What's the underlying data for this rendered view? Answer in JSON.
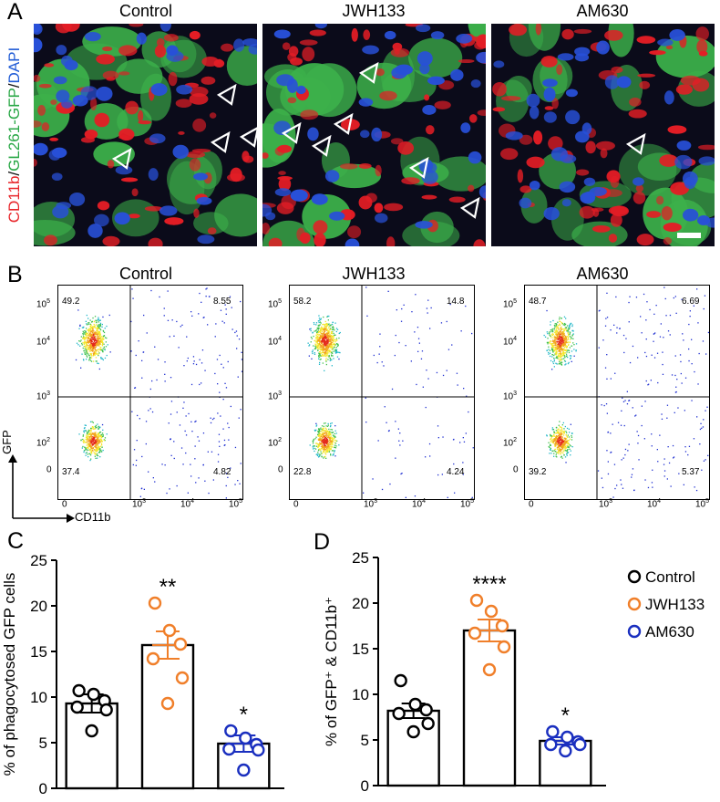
{
  "panelA": {
    "letter": "A",
    "ylabel_parts": [
      {
        "text": "CD11b",
        "color": "#e8262b"
      },
      {
        "text": "/",
        "color": "#111111"
      },
      {
        "text": "GL261-GFP",
        "color": "#28a745"
      },
      {
        "text": "/",
        "color": "#111111"
      },
      {
        "text": "DAPI",
        "color": "#1f5bd6"
      }
    ],
    "titles": [
      "Control",
      "JWH133",
      "AM630"
    ]
  },
  "panelB": {
    "letter": "B",
    "titles": [
      "Control",
      "JWH133",
      "AM630"
    ],
    "xlabel": "CD11b",
    "ylabel": "GFP",
    "quadrants": [
      {
        "ul": "49.2",
        "ur": "8.55",
        "ll": "37.4",
        "lr": "4.82"
      },
      {
        "ul": "58.2",
        "ur": "14.8",
        "ll": "22.8",
        "lr": "4.24"
      },
      {
        "ul": "48.7",
        "ur": "6.69",
        "ll": "39.2",
        "lr": "5.37"
      }
    ],
    "y_ticks": [
      "10",
      "10",
      "10",
      "10",
      "0"
    ],
    "y_tick_exps": [
      "5",
      "4",
      "3",
      "2",
      ""
    ],
    "x_ticks": [
      "0",
      "10",
      "10",
      "10"
    ],
    "x_tick_exps": [
      "",
      "3",
      "4",
      "5"
    ]
  },
  "chart_data": [
    {
      "type": "bar",
      "panel": "C",
      "ylabel": "% of phagocytosed GFP cells",
      "ylim": [
        0,
        25
      ],
      "yticks": [
        0,
        5,
        10,
        15,
        20,
        25
      ],
      "categories": [
        "Control",
        "JWH133",
        "AM630"
      ],
      "values": [
        9.3,
        15.7,
        4.9
      ],
      "sem": [
        1.0,
        1.5,
        0.9
      ],
      "significance": [
        "",
        "**",
        "*"
      ],
      "points": [
        [
          10.7,
          10.3,
          9.6,
          8.9,
          8.6,
          6.3
        ],
        [
          20.3,
          17.3,
          15.8,
          14.2,
          12.1,
          9.3
        ],
        [
          6.3,
          5.5,
          4.8,
          4.3,
          4.2,
          2.0
        ]
      ]
    },
    {
      "type": "bar",
      "panel": "D",
      "ylabel": "% of GFP⁺ & CD11b⁺",
      "ylim": [
        0,
        25
      ],
      "yticks": [
        0,
        5,
        10,
        15,
        20,
        25
      ],
      "categories": [
        "Control",
        "JWH133",
        "AM630"
      ],
      "values": [
        8.2,
        17.0,
        4.9
      ],
      "sem": [
        0.8,
        1.2,
        0.4
      ],
      "significance": [
        "",
        "****",
        "*"
      ],
      "points": [
        [
          11.5,
          8.9,
          8.3,
          7.9,
          6.8,
          5.9
        ],
        [
          20.3,
          19.1,
          17.5,
          16.7,
          15.2,
          12.7
        ],
        [
          5.9,
          5.3,
          4.8,
          4.5,
          4.5,
          3.8
        ]
      ],
      "legend": [
        {
          "label": "Control",
          "color": "#000000"
        },
        {
          "label": "JWH133",
          "color": "#f07f2a"
        },
        {
          "label": "AM630",
          "color": "#1a2fbf"
        }
      ]
    }
  ],
  "panelC": {
    "letter": "C"
  },
  "panelD": {
    "letter": "D"
  },
  "colors": {
    "control": "#000000",
    "jwh133": "#f07f2a",
    "am630": "#1a2fbf"
  }
}
